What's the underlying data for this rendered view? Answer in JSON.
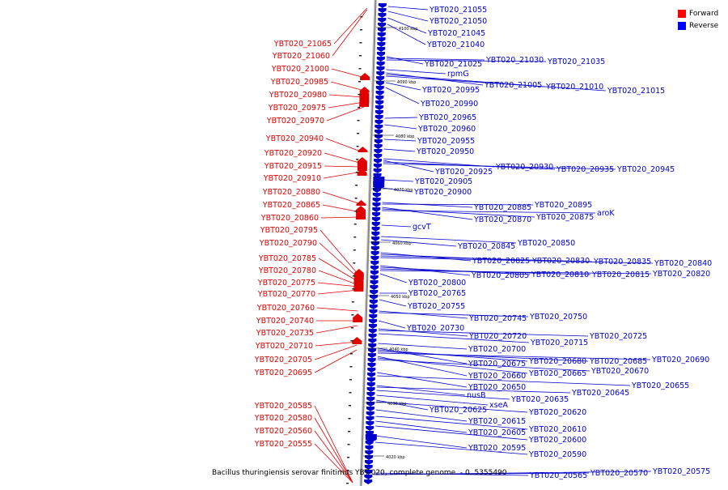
{
  "legend": [
    {
      "label": "Forward",
      "color": "#ff0000"
    },
    {
      "label": "Reverse",
      "color": "#0000ff"
    }
  ],
  "caption": "Bacillus thuringiensis serovar finitimus YBT-020, complete genome. - 0..5355490",
  "colors": {
    "forward": "#e00000",
    "reverse": "#0000cc",
    "axis": "#888888"
  },
  "scale_labels": [
    "4100 kbp",
    "4090 kbp",
    "4080 kbp",
    "4070 kbp",
    "4060 kbp",
    "4050 kbp",
    "4040 kbp",
    "4030 kbp",
    "4020 kbp"
  ],
  "forward_genes": [
    "YBT020_21065",
    "YBT020_21060",
    "YBT020_21000",
    "YBT020_20985",
    "YBT020_20980",
    "YBT020_20975",
    "YBT020_20970",
    "YBT020_20940",
    "YBT020_20920",
    "YBT020_20915",
    "YBT020_20910",
    "YBT020_20880",
    "YBT020_20865",
    "YBT020_20860",
    "YBT020_20795",
    "YBT020_20790",
    "YBT020_20785",
    "YBT020_20780",
    "YBT020_20775",
    "YBT020_20770",
    "YBT020_20760",
    "YBT020_20740",
    "YBT020_20735",
    "YBT020_20710",
    "YBT020_20705",
    "YBT020_20695",
    "YBT020_20585",
    "YBT020_20580",
    "YBT020_20560",
    "YBT020_20555"
  ],
  "reverse_genes": [
    "YBT020_21055",
    "YBT020_21050",
    "YBT020_21045",
    "YBT020_21040",
    "YBT020_21025",
    "YBT020_21030",
    "YBT020_21035",
    "rpmG",
    "YBT020_21005",
    "YBT020_21010",
    "YBT020_21015",
    "YBT020_20995",
    "YBT020_20990",
    "YBT020_20965",
    "YBT020_20960",
    "YBT020_20955",
    "YBT020_20950",
    "YBT020_20930",
    "YBT020_20925",
    "YBT020_20935",
    "YBT020_20945",
    "YBT020_20905",
    "YBT020_20900",
    "YBT020_20885",
    "YBT020_20895",
    "YBT020_20870",
    "YBT020_20875",
    "aroK",
    "gcvT",
    "YBT020_20850",
    "YBT020_20845",
    "YBT020_20825",
    "YBT020_20830",
    "YBT020_20835",
    "YBT020_20840",
    "YBT020_20805",
    "YBT020_20810",
    "YBT020_20815",
    "YBT020_20820",
    "YBT020_20800",
    "YBT020_20765",
    "YBT020_20755",
    "YBT020_20745",
    "YBT020_20750",
    "YBT020_20730",
    "YBT020_20720",
    "YBT020_20725",
    "YBT020_20715",
    "YBT020_20700",
    "YBT020_20675",
    "YBT020_20680",
    "YBT020_20685",
    "YBT020_20690",
    "YBT020_20660",
    "YBT020_20665",
    "YBT020_20670",
    "YBT020_20650",
    "YBT020_20655",
    "nusB",
    "YBT020_20645",
    "YBT020_20635",
    "xseA",
    "YBT020_20625",
    "YBT020_20620",
    "YBT020_20615",
    "YBT020_20610",
    "YBT020_20605",
    "YBT020_20600",
    "YBT020_20595",
    "YBT020_20590",
    "YBT020_20565",
    "YBT020_20570",
    "YBT020_20575"
  ]
}
